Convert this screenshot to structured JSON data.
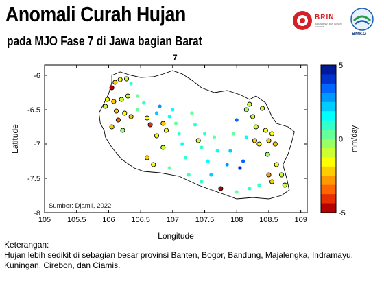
{
  "header": {
    "title": "Anomali Curah Hujan",
    "subtitle": "pada MJO Fase 7 di Jawa bagian Barat"
  },
  "logos": {
    "brin": "BRIN",
    "brin_sub": "BADAN RISET DAN INOVASI NASIONAL",
    "bmkg": "BMKG"
  },
  "panel_label": "7",
  "map": {
    "xlabel": "Longitude",
    "ylabel": "Latitude",
    "xticks": [
      "105",
      "105.5",
      "106",
      "106.5",
      "107",
      "107.5",
      "108",
      "108.5",
      "109"
    ],
    "yticks": [
      "-6",
      "-6.5",
      "-7",
      "-7.5",
      "-8"
    ],
    "xlim": [
      105,
      109.1
    ],
    "ylim": [
      -8,
      -5.85
    ],
    "source": "Sumber: Djamil, 2022",
    "colorbar": {
      "label": "mm/day",
      "ticks": [
        "5",
        "0",
        "-5"
      ],
      "range": [
        -5,
        5
      ],
      "colors": [
        "#b30000",
        "#e62e00",
        "#ff6600",
        "#ff9900",
        "#ffcc00",
        "#ffff00",
        "#ccff33",
        "#99ff66",
        "#66ff99",
        "#33ffcc",
        "#00ffff",
        "#00ccff",
        "#0099ff",
        "#0066ff",
        "#0033cc",
        "#001a99"
      ]
    },
    "island_outline": [
      [
        105.93,
        -6.8
      ],
      [
        105.87,
        -6.7
      ],
      [
        105.85,
        -6.55
      ],
      [
        105.92,
        -6.42
      ],
      [
        106.0,
        -6.27
      ],
      [
        106.05,
        -6.1
      ],
      [
        106.05,
        -6.0
      ],
      [
        106.18,
        -5.95
      ],
      [
        106.35,
        -6.0
      ],
      [
        106.5,
        -6.03
      ],
      [
        106.7,
        -6.02
      ],
      [
        106.85,
        -5.98
      ],
      [
        107.0,
        -5.93
      ],
      [
        107.15,
        -5.98
      ],
      [
        107.3,
        -6.07
      ],
      [
        107.45,
        -6.18
      ],
      [
        107.65,
        -6.25
      ],
      [
        107.85,
        -6.22
      ],
      [
        108.05,
        -6.28
      ],
      [
        108.2,
        -6.35
      ],
      [
        108.3,
        -6.3
      ],
      [
        108.45,
        -6.4
      ],
      [
        108.55,
        -6.6
      ],
      [
        108.62,
        -6.7
      ],
      [
        108.8,
        -6.75
      ],
      [
        108.9,
        -6.82
      ],
      [
        108.85,
        -7.0
      ],
      [
        108.8,
        -7.15
      ],
      [
        108.72,
        -7.3
      ],
      [
        108.78,
        -7.5
      ],
      [
        108.82,
        -7.67
      ],
      [
        108.7,
        -7.75
      ],
      [
        108.5,
        -7.8
      ],
      [
        108.25,
        -7.78
      ],
      [
        108.0,
        -7.8
      ],
      [
        107.7,
        -7.7
      ],
      [
        107.4,
        -7.6
      ],
      [
        107.1,
        -7.47
      ],
      [
        106.8,
        -7.42
      ],
      [
        106.55,
        -7.4
      ],
      [
        106.4,
        -7.35
      ],
      [
        106.2,
        -7.22
      ],
      [
        106.05,
        -7.05
      ],
      [
        105.95,
        -6.9
      ],
      [
        105.93,
        -6.8
      ]
    ],
    "stations": [
      {
        "lon": 106.05,
        "lat": -6.18,
        "v": -4.5
      },
      {
        "lon": 106.1,
        "lat": -6.1,
        "v": -2.0
      },
      {
        "lon": 106.18,
        "lat": -6.06,
        "v": -1.5
      },
      {
        "lon": 106.28,
        "lat": -6.05,
        "v": -1.0
      },
      {
        "lon": 106.35,
        "lat": -6.12,
        "v": 0.8
      },
      {
        "lon": 105.98,
        "lat": -6.35,
        "v": -1.5
      },
      {
        "lon": 106.08,
        "lat": -6.38,
        "v": -2.5
      },
      {
        "lon": 106.2,
        "lat": -6.35,
        "v": -1.0
      },
      {
        "lon": 106.3,
        "lat": -6.3,
        "v": -1.2
      },
      {
        "lon": 106.45,
        "lat": -6.3,
        "v": 0.5
      },
      {
        "lon": 105.95,
        "lat": -6.45,
        "v": -0.8
      },
      {
        "lon": 106.12,
        "lat": -6.52,
        "v": -2.0
      },
      {
        "lon": 106.25,
        "lat": -6.55,
        "v": -1.8
      },
      {
        "lon": 106.15,
        "lat": -6.65,
        "v": -3.5
      },
      {
        "lon": 106.35,
        "lat": -6.6,
        "v": -2.2
      },
      {
        "lon": 106.05,
        "lat": -6.75,
        "v": -2.5
      },
      {
        "lon": 106.22,
        "lat": -6.8,
        "v": -0.5
      },
      {
        "lon": 106.45,
        "lat": -6.5,
        "v": 0.3
      },
      {
        "lon": 106.55,
        "lat": -6.4,
        "v": 1.0
      },
      {
        "lon": 106.6,
        "lat": -6.62,
        "v": -1.5
      },
      {
        "lon": 106.65,
        "lat": -6.72,
        "v": -4.0
      },
      {
        "lon": 106.75,
        "lat": -6.55,
        "v": 2.0
      },
      {
        "lon": 106.8,
        "lat": -6.45,
        "v": 2.5
      },
      {
        "lon": 106.85,
        "lat": -6.7,
        "v": -2.0
      },
      {
        "lon": 106.9,
        "lat": -6.8,
        "v": -1.5
      },
      {
        "lon": 106.95,
        "lat": -6.6,
        "v": 1.5
      },
      {
        "lon": 106.75,
        "lat": -6.88,
        "v": -1.8
      },
      {
        "lon": 106.85,
        "lat": -7.05,
        "v": -1.0
      },
      {
        "lon": 107.0,
        "lat": -6.5,
        "v": 1.8
      },
      {
        "lon": 107.05,
        "lat": -6.7,
        "v": 0.5
      },
      {
        "lon": 107.1,
        "lat": -6.85,
        "v": 0.8
      },
      {
        "lon": 107.15,
        "lat": -7.0,
        "v": 1.5
      },
      {
        "lon": 107.2,
        "lat": -7.2,
        "v": 1.0
      },
      {
        "lon": 107.3,
        "lat": -6.55,
        "v": 0.5
      },
      {
        "lon": 107.35,
        "lat": -6.72,
        "v": 1.2
      },
      {
        "lon": 107.4,
        "lat": -6.95,
        "v": -0.8
      },
      {
        "lon": 107.45,
        "lat": -7.05,
        "v": 1.0
      },
      {
        "lon": 107.5,
        "lat": -6.85,
        "v": 0.8
      },
      {
        "lon": 107.55,
        "lat": -7.25,
        "v": 1.5
      },
      {
        "lon": 107.6,
        "lat": -7.45,
        "v": 2.0
      },
      {
        "lon": 107.65,
        "lat": -6.9,
        "v": 0.5
      },
      {
        "lon": 107.7,
        "lat": -7.1,
        "v": 1.3
      },
      {
        "lon": 107.75,
        "lat": -7.65,
        "v": -4.5
      },
      {
        "lon": 107.85,
        "lat": -7.3,
        "v": 3.0
      },
      {
        "lon": 107.9,
        "lat": -7.1,
        "v": 2.2
      },
      {
        "lon": 107.95,
        "lat": -6.85,
        "v": 0.5
      },
      {
        "lon": 108.0,
        "lat": -6.65,
        "v": 3.5
      },
      {
        "lon": 108.05,
        "lat": -7.35,
        "v": 4.0
      },
      {
        "lon": 108.1,
        "lat": -7.25,
        "v": 3.2
      },
      {
        "lon": 108.15,
        "lat": -6.9,
        "v": 1.5
      },
      {
        "lon": 108.15,
        "lat": -6.5,
        "v": -0.5
      },
      {
        "lon": 108.2,
        "lat": -6.42,
        "v": -1.2
      },
      {
        "lon": 108.25,
        "lat": -6.6,
        "v": -0.8
      },
      {
        "lon": 108.3,
        "lat": -6.75,
        "v": -1.0
      },
      {
        "lon": 108.28,
        "lat": -6.95,
        "v": -2.0
      },
      {
        "lon": 108.35,
        "lat": -7.0,
        "v": -1.5
      },
      {
        "lon": 108.4,
        "lat": -6.48,
        "v": -1.0
      },
      {
        "lon": 108.45,
        "lat": -6.8,
        "v": -1.8
      },
      {
        "lon": 108.5,
        "lat": -6.95,
        "v": -2.5
      },
      {
        "lon": 108.55,
        "lat": -6.85,
        "v": -1.5
      },
      {
        "lon": 108.6,
        "lat": -7.0,
        "v": -2.2
      },
      {
        "lon": 108.48,
        "lat": -7.15,
        "v": -0.5
      },
      {
        "lon": 108.62,
        "lat": -7.3,
        "v": -1.5
      },
      {
        "lon": 108.5,
        "lat": -7.45,
        "v": -2.8
      },
      {
        "lon": 108.55,
        "lat": -7.55,
        "v": -2.0
      },
      {
        "lon": 108.7,
        "lat": -7.45,
        "v": -1.0
      },
      {
        "lon": 108.75,
        "lat": -7.6,
        "v": -0.8
      },
      {
        "lon": 108.35,
        "lat": -7.6,
        "v": 1.0
      },
      {
        "lon": 108.2,
        "lat": -7.65,
        "v": 0.8
      },
      {
        "lon": 108.0,
        "lat": -7.7,
        "v": 0.3
      },
      {
        "lon": 107.45,
        "lat": -7.55,
        "v": 1.2
      },
      {
        "lon": 107.25,
        "lat": -7.45,
        "v": 0.8
      },
      {
        "lon": 106.7,
        "lat": -7.3,
        "v": -1.5
      },
      {
        "lon": 106.6,
        "lat": -7.2,
        "v": -2.0
      },
      {
        "lon": 106.95,
        "lat": -7.35,
        "v": 0.5
      }
    ]
  },
  "notes": {
    "heading": "Keterangan:",
    "line1": "Hujan lebih sedikit di sebagian besar provinsi Banten, Bogor, Bandung, Majalengka, Indramayu,",
    "line2": "Kuningan, Cirebon, dan Ciamis."
  }
}
